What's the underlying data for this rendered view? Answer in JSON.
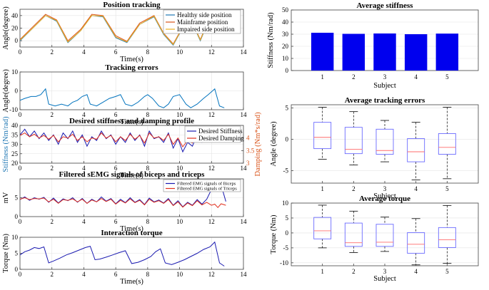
{
  "chart_data": [
    {
      "id": "position",
      "type": "line",
      "title": "Position tracking",
      "xlabel": "Time(s)",
      "ylabel": "Angle(degree)",
      "xlim": [
        0,
        14
      ],
      "ylim": [
        -10,
        50
      ],
      "xticks": [
        0,
        2,
        4,
        6,
        8,
        10,
        12,
        14
      ],
      "yticks": [
        0,
        20,
        40
      ],
      "legend_position": "top-right",
      "series": [
        {
          "name": "Healthy side position",
          "color": "#1f77b4",
          "x": [
            0,
            0.8,
            1.6,
            2.3,
            3.0,
            3.8,
            4.5,
            5.2,
            6.0,
            6.7,
            7.5,
            8.4,
            9.0,
            9.6,
            10.6,
            11.3,
            12.0,
            12.5,
            12.9
          ],
          "y": [
            0,
            20,
            40,
            31,
            -3,
            16,
            40,
            38,
            5,
            -3,
            26,
            38,
            10,
            -7,
            39,
            0,
            43,
            36,
            20
          ]
        },
        {
          "name": "Mainframe position",
          "color": "#d95319",
          "x": [
            0,
            0.8,
            1.6,
            2.3,
            3.0,
            3.8,
            4.5,
            5.2,
            6.0,
            6.7,
            7.5,
            8.4,
            9.0,
            9.6,
            10.6,
            11.3,
            12.0,
            12.5,
            12.9
          ],
          "y": [
            2,
            22,
            42,
            33,
            0,
            18,
            42,
            40,
            8,
            -1,
            28,
            40,
            12,
            -5,
            40,
            2,
            44,
            38,
            22
          ]
        },
        {
          "name": "Impaired side position",
          "color": "#edb120",
          "x": [
            0,
            0.8,
            1.6,
            2.3,
            3.0,
            3.8,
            4.5,
            5.2,
            6.0,
            6.7,
            7.5,
            8.4,
            9.0,
            9.6,
            10.6,
            11.3,
            12.0,
            12.5,
            12.9
          ],
          "y": [
            1,
            20,
            40,
            32,
            -2,
            16,
            40,
            39,
            6,
            -2,
            26,
            39,
            11,
            -6,
            39,
            1,
            43,
            37,
            21
          ]
        }
      ]
    },
    {
      "id": "tracking_errors",
      "type": "line",
      "title": "Tracking errors",
      "xlabel": "Time(s)",
      "ylabel": "Angle(degree)",
      "xlim": [
        0,
        14
      ],
      "ylim": [
        -10,
        10
      ],
      "xticks": [
        0,
        2,
        4,
        6,
        8,
        10,
        12,
        14
      ],
      "yticks": [
        -10,
        0,
        10
      ],
      "series": [
        {
          "name": "",
          "color": "#0072bd",
          "x": [
            0,
            0.3,
            0.7,
            1.0,
            1.3,
            1.6,
            1.8,
            2.2,
            2.6,
            3.0,
            3.3,
            3.6,
            3.9,
            4.2,
            4.4,
            4.8,
            5.2,
            5.6,
            6.0,
            6.3,
            6.6,
            7.0,
            7.4,
            7.8,
            8.0,
            8.3,
            8.7,
            9.0,
            9.3,
            9.6,
            10.0,
            10.4,
            10.7,
            11.1,
            11.5,
            11.8,
            12.2,
            12.5,
            12.8
          ],
          "y": [
            -5,
            -4,
            -3,
            -3,
            -2,
            1,
            -7,
            -8,
            -7,
            -8,
            -6,
            -5,
            -3,
            -2,
            -7,
            -8,
            -6,
            -4,
            -3,
            -2,
            -7,
            -8,
            -6,
            -3,
            -2,
            -4,
            -8,
            -9,
            -7,
            -3,
            -2,
            -7,
            -9,
            -7,
            -4,
            -2,
            1,
            -8,
            -9
          ]
        }
      ]
    },
    {
      "id": "stiffness_damping",
      "type": "line",
      "title": "Desired stiffness and damping profile",
      "xlabel": "Time(s)",
      "ylabel": "Stiffness (Nm/rad)",
      "y2label": "Damping (Nm*s/rad)",
      "xlim": [
        0,
        14
      ],
      "ylim": [
        20,
        40
      ],
      "y2lim": [
        3,
        4.5
      ],
      "xticks": [
        0,
        2,
        4,
        6,
        8,
        10,
        12,
        14
      ],
      "yticks": [
        20,
        25,
        30,
        35,
        40
      ],
      "y2ticks": [
        3,
        3.5,
        4
      ],
      "y2ticklabels": [
        "3",
        "3.5",
        "4"
      ],
      "legend_position": "top-right",
      "series": [
        {
          "name": "Desired Stiffness",
          "color": "#1a1ab0",
          "axis": "left",
          "x": [
            0,
            0.3,
            0.6,
            0.9,
            1.2,
            1.5,
            1.8,
            2.1,
            2.4,
            2.7,
            3.0,
            3.3,
            3.6,
            3.9,
            4.2,
            4.5,
            4.8,
            5.1,
            5.4,
            5.7,
            6.0,
            6.3,
            6.6,
            6.9,
            7.2,
            7.5,
            7.8,
            8.1,
            8.4,
            8.7,
            9.0,
            9.3,
            9.6,
            9.9,
            10.2,
            10.5,
            10.8,
            11.1,
            11.4,
            11.7,
            12.0,
            12.3,
            12.6,
            12.9
          ],
          "y": [
            35,
            38,
            34,
            37,
            33,
            36,
            32,
            35,
            30,
            36,
            33,
            37,
            31,
            35,
            29,
            34,
            32,
            37,
            33,
            35,
            30,
            34,
            31,
            36,
            32,
            35,
            29,
            37,
            33,
            34,
            31,
            36,
            28,
            33,
            26,
            31,
            29,
            35,
            31,
            34,
            38,
            33,
            35,
            31
          ]
        },
        {
          "name": "Desired Damping",
          "color": "#e0301e",
          "axis": "right",
          "x": [
            0,
            0.3,
            0.6,
            0.9,
            1.2,
            1.5,
            1.8,
            2.1,
            2.4,
            2.7,
            3.0,
            3.3,
            3.6,
            3.9,
            4.2,
            4.5,
            4.8,
            5.1,
            5.4,
            5.7,
            6.0,
            6.3,
            6.6,
            6.9,
            7.2,
            7.5,
            7.8,
            8.1,
            8.4,
            8.7,
            9.0,
            9.3,
            9.6,
            9.9,
            10.2,
            10.5,
            10.8,
            11.1,
            11.4,
            11.7,
            12.0,
            12.3,
            12.6,
            12.9
          ],
          "y": [
            4.1,
            4.2,
            4.05,
            4.15,
            4.0,
            4.1,
            3.95,
            4.1,
            3.85,
            4.05,
            4.0,
            4.15,
            3.9,
            4.05,
            3.85,
            4.0,
            3.95,
            4.2,
            4.0,
            4.1,
            3.85,
            4.05,
            3.9,
            4.15,
            3.95,
            4.1,
            3.8,
            4.2,
            4.0,
            4.05,
            3.9,
            4.15,
            3.75,
            4.0,
            3.65,
            3.9,
            3.8,
            4.1,
            3.9,
            4.05,
            4.3,
            4.0,
            4.1,
            3.9
          ]
        }
      ]
    },
    {
      "id": "semg",
      "type": "line",
      "title": "Filtered sEMG signals of biceps and triceps",
      "xlabel": "Time(s)",
      "ylabel": "mV",
      "xlim": [
        0,
        14
      ],
      "ylim": [
        0,
        10
      ],
      "xticks": [
        0,
        2,
        4,
        6,
        8,
        10,
        12,
        14
      ],
      "yticks": [
        0,
        5
      ],
      "legend_position": "top-right",
      "series": [
        {
          "name": "Filtered EMG signals of Biceps",
          "color": "#1a1ab0",
          "x": [
            0,
            0.3,
            0.6,
            0.9,
            1.2,
            1.5,
            1.8,
            2.1,
            2.4,
            2.7,
            3.0,
            3.3,
            3.6,
            3.9,
            4.2,
            4.5,
            4.8,
            5.1,
            5.4,
            5.7,
            6.0,
            6.3,
            6.6,
            6.9,
            7.2,
            7.5,
            7.8,
            8.1,
            8.4,
            8.7,
            9.0,
            9.3,
            9.6,
            9.9,
            10.2,
            10.5,
            10.8,
            11.1,
            11.4,
            11.7,
            12.0,
            12.2,
            12.4,
            12.6,
            12.9
          ],
          "y": [
            4.5,
            5.2,
            4.3,
            5.0,
            4.6,
            5.1,
            3.8,
            4.9,
            3.6,
            4.7,
            4.2,
            5.0,
            3.8,
            4.8,
            3.5,
            4.6,
            3.9,
            5.2,
            4.1,
            4.8,
            3.4,
            4.6,
            3.7,
            5.0,
            3.8,
            4.5,
            3.2,
            4.9,
            3.9,
            4.4,
            3.6,
            4.8,
            3.0,
            4.2,
            2.6,
            3.8,
            3.0,
            4.5,
            3.3,
            4.6,
            7.2,
            8.0,
            6.8,
            8.4,
            4.0
          ]
        },
        {
          "name": "Filtered EMG signals of Triceps",
          "color": "#e0301e",
          "x": [
            0,
            0.3,
            0.6,
            0.9,
            1.2,
            1.5,
            1.8,
            2.1,
            2.4,
            2.7,
            3.0,
            3.3,
            3.6,
            3.9,
            4.2,
            4.5,
            4.8,
            5.1,
            5.4,
            5.7,
            6.0,
            6.3,
            6.6,
            6.9,
            7.2,
            7.5,
            7.8,
            8.1,
            8.4,
            8.7,
            9.0,
            9.3,
            9.6,
            9.9,
            10.2,
            10.5,
            10.8,
            11.1,
            11.4,
            11.7,
            12.0,
            12.2,
            12.4,
            12.6,
            12.9
          ],
          "y": [
            4.6,
            5.0,
            4.5,
            4.8,
            4.7,
            4.9,
            3.9,
            4.6,
            3.5,
            4.5,
            4.3,
            4.7,
            3.9,
            4.6,
            3.5,
            4.4,
            3.9,
            4.8,
            4.0,
            4.6,
            3.3,
            4.3,
            3.6,
            4.7,
            3.7,
            4.3,
            3.1,
            4.6,
            3.8,
            4.2,
            3.5,
            4.5,
            2.9,
            3.9,
            2.5,
            3.6,
            2.9,
            4.2,
            3.1,
            3.8,
            3.0,
            3.3,
            2.4,
            3.4,
            3.0
          ]
        }
      ]
    },
    {
      "id": "interaction_torque",
      "type": "line",
      "title": "Interaction torque",
      "xlabel": "Time(s)",
      "ylabel": "Torque (Nm)",
      "xlim": [
        0,
        14
      ],
      "ylim": [
        0,
        10
      ],
      "xticks": [
        0,
        2,
        4,
        6,
        8,
        10,
        12,
        14
      ],
      "yticks": [
        0,
        5,
        10
      ],
      "series": [
        {
          "name": "",
          "color": "#1a1ab0",
          "x": [
            0,
            0.3,
            0.6,
            0.9,
            1.2,
            1.5,
            1.8,
            2.1,
            2.5,
            2.9,
            3.3,
            3.7,
            4.1,
            4.4,
            4.7,
            5.0,
            5.4,
            5.8,
            6.2,
            6.6,
            7.0,
            7.4,
            7.8,
            8.2,
            8.5,
            8.8,
            9.1,
            9.5,
            9.9,
            10.3,
            10.7,
            11.1,
            11.5,
            11.9,
            12.2,
            12.5,
            12.8
          ],
          "y": [
            4.5,
            5.5,
            6.0,
            6.8,
            6.5,
            7.0,
            2.0,
            2.6,
            3.5,
            4.5,
            5.2,
            6.0,
            6.8,
            7.2,
            3.0,
            3.2,
            3.8,
            4.5,
            5.2,
            5.8,
            1.8,
            2.2,
            3.0,
            4.0,
            5.5,
            6.4,
            2.0,
            1.5,
            2.2,
            3.0,
            4.0,
            5.0,
            6.2,
            7.0,
            8.5,
            2.0,
            1.0
          ]
        }
      ]
    },
    {
      "id": "avg_stiffness",
      "type": "bar",
      "title": "Average stiffness",
      "xlabel": "Subject",
      "ylabel": "Stiffness (Nm/rad)",
      "ylim": [
        0,
        50
      ],
      "yticks": [
        0,
        10,
        20,
        30,
        40,
        50
      ],
      "categories": [
        "1",
        "2",
        "3",
        "4",
        "5"
      ],
      "values": [
        31.2,
        30.3,
        30.6,
        30.0,
        30.5
      ],
      "color": "#0000ee"
    },
    {
      "id": "avg_tracking_errors",
      "type": "box",
      "title": "Average tracking errors",
      "xlabel": "Subject",
      "ylabel": "Angle (degree)",
      "ylim": [
        -7,
        5.5
      ],
      "yticks": [
        -5,
        0,
        5
      ],
      "categories": [
        "1",
        "2",
        "3",
        "4",
        "5"
      ],
      "boxes": [
        {
          "min": -3.2,
          "q1": -1.5,
          "median": 0.3,
          "q3": 2.7,
          "max": 5.1
        },
        {
          "min": -4.1,
          "q1": -2.3,
          "median": -1.6,
          "q3": 1.9,
          "max": 4.4
        },
        {
          "min": -3.6,
          "q1": -2.4,
          "median": -1.8,
          "q3": 1.6,
          "max": 3.0
        },
        {
          "min": -6.5,
          "q1": -3.6,
          "median": -2.0,
          "q3": 0.1,
          "max": 2.7
        },
        {
          "min": -6.3,
          "q1": -2.4,
          "median": -1.3,
          "q3": 0.9,
          "max": 5.1
        }
      ]
    },
    {
      "id": "avg_torque",
      "type": "box",
      "title": "Average torque",
      "xlabel": "Subject",
      "ylabel": "Torque (Nm)",
      "ylim": [
        -11,
        10
      ],
      "yticks": [
        -10,
        -5,
        0,
        5,
        10
      ],
      "categories": [
        "1",
        "2",
        "3",
        "4",
        "5"
      ],
      "boxes": [
        {
          "min": -5.0,
          "q1": -2.0,
          "median": 0.7,
          "q3": 5.2,
          "max": 9.3
        },
        {
          "min": -6.6,
          "q1": -4.5,
          "median": -3.3,
          "q3": 3.3,
          "max": 7.3
        },
        {
          "min": -6.2,
          "q1": -4.5,
          "median": -3.1,
          "q3": 2.9,
          "max": 5.3
        },
        {
          "min": -10.7,
          "q1": -6.8,
          "median": -3.8,
          "q3": 0.1,
          "max": 4.8
        },
        {
          "min": -10.2,
          "q1": -4.9,
          "median": -2.3,
          "q3": 1.8,
          "max": 9.2
        }
      ]
    }
  ],
  "style": {
    "box_color": "#6b6bff",
    "median_color": "#ff6b6b",
    "whisker_color": "#000000",
    "axis_color_stiffness": "#1f77b4",
    "axis_color_damping": "#d95319"
  }
}
